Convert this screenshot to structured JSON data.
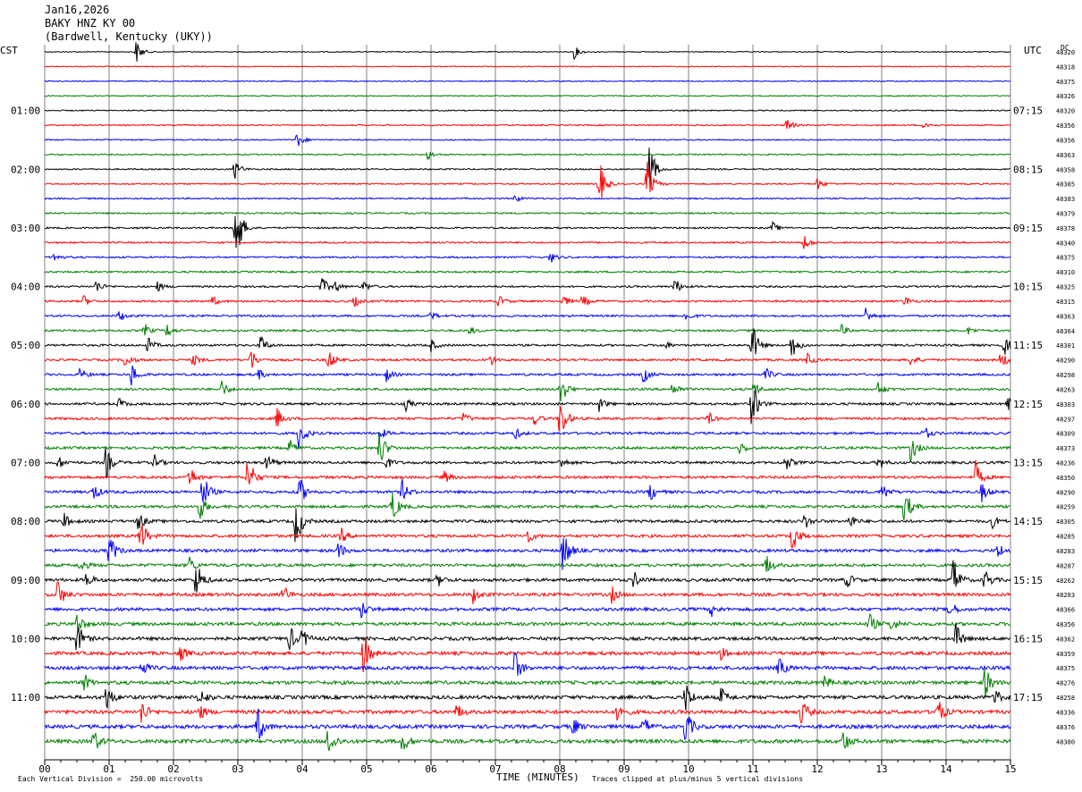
{
  "header": {
    "date": "Jan16,2026",
    "station": "BAKY HNZ KY 00",
    "location": "(Bardwell, Kentucky (UKY))"
  },
  "left_tz": "CST",
  "right_tz": "UTC",
  "dc_label": "DC",
  "footer": {
    "scale_note": "Each Vertical Division =  250.00 microvolts",
    "xlabel": "TIME (MINUTES)",
    "clip_note": "Traces clipped at plus/minus 5 vertical divisions"
  },
  "colors": {
    "cycle": [
      "#000000",
      "#ff0000",
      "#0000ff",
      "#007f00"
    ],
    "grid": "#808080"
  },
  "chart_data": {
    "type": "line",
    "title": "",
    "xlabel": "TIME (MINUTES)",
    "xlim": [
      0,
      15
    ],
    "x_ticks": [
      "00",
      "01",
      "02",
      "03",
      "04",
      "05",
      "06",
      "07",
      "08",
      "09",
      "10",
      "11",
      "12",
      "13",
      "14",
      "15"
    ],
    "rows": 48,
    "row_minutes": 15,
    "left_hour_labels": [
      "01:00",
      "02:00",
      "03:00",
      "04:00",
      "05:00",
      "06:00",
      "07:00",
      "08:00",
      "09:00",
      "10:00",
      "11:00"
    ],
    "right_hour_labels": [
      "07:15",
      "08:15",
      "09:15",
      "10:15",
      "11:15",
      "12:15",
      "13:15",
      "14:15",
      "15:15",
      "16:15",
      "17:15"
    ],
    "dc_offsets": [
      "48320",
      "48318",
      "48375",
      "48326",
      "48320",
      "48356",
      "48356",
      "48363",
      "48358",
      "48385",
      "48383",
      "48379",
      "48378",
      "48340",
      "48375",
      "48310",
      "48325",
      "48315",
      "48363",
      "48364",
      "48301",
      "48290",
      "48298",
      "48263",
      "48303",
      "48297",
      "48309",
      "48373",
      "48236",
      "48350",
      "48290",
      "48259",
      "48305",
      "48285",
      "48283",
      "48287",
      "48262",
      "48283",
      "48366",
      "48356",
      "48362",
      "48359",
      "48375",
      "48276",
      "48258",
      "48336",
      "48376",
      "48380"
    ],
    "events": [
      {
        "row": 0,
        "minute": 1.42,
        "amp": 14
      },
      {
        "row": 0,
        "minute": 8.22,
        "amp": 8
      },
      {
        "row": 5,
        "minute": 11.52,
        "amp": 10
      },
      {
        "row": 5,
        "minute": 13.65,
        "amp": 7
      },
      {
        "row": 6,
        "minute": 3.92,
        "amp": 10
      },
      {
        "row": 7,
        "minute": 5.95,
        "amp": 6
      },
      {
        "row": 8,
        "minute": 2.95,
        "amp": 12
      },
      {
        "row": 8,
        "minute": 9.38,
        "amp": 38
      },
      {
        "row": 9,
        "minute": 8.6,
        "amp": 34
      },
      {
        "row": 9,
        "minute": 9.35,
        "amp": 28
      },
      {
        "row": 9,
        "minute": 12.0,
        "amp": 7
      },
      {
        "row": 10,
        "minute": 7.3,
        "amp": 5
      },
      {
        "row": 12,
        "minute": 2.95,
        "amp": 65
      },
      {
        "row": 12,
        "minute": 11.3,
        "amp": 7
      },
      {
        "row": 13,
        "minute": 11.8,
        "amp": 10
      },
      {
        "row": 14,
        "minute": 0.15,
        "amp": 6
      },
      {
        "row": 14,
        "minute": 7.85,
        "amp": 7
      },
      {
        "row": 16,
        "minute": 0.8,
        "amp": 8
      },
      {
        "row": 16,
        "minute": 1.75,
        "amp": 6
      },
      {
        "row": 16,
        "minute": 4.3,
        "amp": 12
      },
      {
        "row": 16,
        "minute": 4.5,
        "amp": 8
      },
      {
        "row": 16,
        "minute": 4.95,
        "amp": 7
      },
      {
        "row": 16,
        "minute": 9.78,
        "amp": 11
      },
      {
        "row": 17,
        "minute": 0.6,
        "amp": 7
      },
      {
        "row": 17,
        "minute": 2.6,
        "amp": 6
      },
      {
        "row": 17,
        "minute": 4.8,
        "amp": 7
      },
      {
        "row": 17,
        "minute": 7.05,
        "amp": 7
      },
      {
        "row": 17,
        "minute": 8.05,
        "amp": 7
      },
      {
        "row": 17,
        "minute": 8.35,
        "amp": 8
      },
      {
        "row": 17,
        "minute": 13.35,
        "amp": 7
      },
      {
        "row": 18,
        "minute": 1.15,
        "amp": 7
      },
      {
        "row": 18,
        "minute": 6.0,
        "amp": 5
      },
      {
        "row": 18,
        "minute": 9.95,
        "amp": 7
      },
      {
        "row": 18,
        "minute": 12.75,
        "amp": 10
      },
      {
        "row": 19,
        "minute": 1.55,
        "amp": 8
      },
      {
        "row": 19,
        "minute": 1.9,
        "amp": 8
      },
      {
        "row": 19,
        "minute": 6.6,
        "amp": 5
      },
      {
        "row": 19,
        "minute": 12.35,
        "amp": 9
      },
      {
        "row": 19,
        "minute": 14.35,
        "amp": 5
      },
      {
        "row": 20,
        "minute": 1.6,
        "amp": 10
      },
      {
        "row": 20,
        "minute": 3.35,
        "amp": 12
      },
      {
        "row": 20,
        "minute": 6.0,
        "amp": 7
      },
      {
        "row": 20,
        "minute": 9.6,
        "amp": 7
      },
      {
        "row": 20,
        "minute": 10.98,
        "amp": 30
      },
      {
        "row": 20,
        "minute": 11.6,
        "amp": 18
      },
      {
        "row": 20,
        "minute": 14.9,
        "amp": 12
      },
      {
        "row": 21,
        "minute": 1.25,
        "amp": 10
      },
      {
        "row": 21,
        "minute": 2.3,
        "amp": 8
      },
      {
        "row": 21,
        "minute": 3.2,
        "amp": 14
      },
      {
        "row": 21,
        "minute": 4.4,
        "amp": 14
      },
      {
        "row": 21,
        "minute": 6.9,
        "amp": 8
      },
      {
        "row": 21,
        "minute": 11.85,
        "amp": 8
      },
      {
        "row": 21,
        "minute": 13.45,
        "amp": 7
      },
      {
        "row": 21,
        "minute": 14.85,
        "amp": 12
      },
      {
        "row": 22,
        "minute": 0.55,
        "amp": 8
      },
      {
        "row": 22,
        "minute": 1.35,
        "amp": 14
      },
      {
        "row": 22,
        "minute": 3.3,
        "amp": 8
      },
      {
        "row": 22,
        "minute": 5.3,
        "amp": 8
      },
      {
        "row": 22,
        "minute": 9.3,
        "amp": 10
      },
      {
        "row": 22,
        "minute": 11.2,
        "amp": 8
      },
      {
        "row": 23,
        "minute": 2.75,
        "amp": 10
      },
      {
        "row": 23,
        "minute": 8.0,
        "amp": 24
      },
      {
        "row": 23,
        "minute": 9.75,
        "amp": 10
      },
      {
        "row": 23,
        "minute": 11.0,
        "amp": 10
      },
      {
        "row": 23,
        "minute": 12.95,
        "amp": 9
      },
      {
        "row": 24,
        "minute": 1.15,
        "amp": 7
      },
      {
        "row": 24,
        "minute": 5.6,
        "amp": 8
      },
      {
        "row": 24,
        "minute": 8.6,
        "amp": 10
      },
      {
        "row": 24,
        "minute": 10.98,
        "amp": 30
      },
      {
        "row": 24,
        "minute": 14.95,
        "amp": 9
      },
      {
        "row": 25,
        "minute": 3.6,
        "amp": 14
      },
      {
        "row": 25,
        "minute": 6.5,
        "amp": 7
      },
      {
        "row": 25,
        "minute": 7.6,
        "amp": 8
      },
      {
        "row": 25,
        "minute": 8.0,
        "amp": 30
      },
      {
        "row": 25,
        "minute": 10.3,
        "amp": 8
      },
      {
        "row": 26,
        "minute": 3.95,
        "amp": 22
      },
      {
        "row": 26,
        "minute": 5.2,
        "amp": 8
      },
      {
        "row": 26,
        "minute": 7.3,
        "amp": 7
      },
      {
        "row": 26,
        "minute": 13.65,
        "amp": 10
      },
      {
        "row": 27,
        "minute": 3.8,
        "amp": 10
      },
      {
        "row": 27,
        "minute": 5.2,
        "amp": 25
      },
      {
        "row": 27,
        "minute": 10.8,
        "amp": 8
      },
      {
        "row": 27,
        "minute": 13.45,
        "amp": 18
      },
      {
        "row": 28,
        "minute": 0.2,
        "amp": 9
      },
      {
        "row": 28,
        "minute": 0.95,
        "amp": 20
      },
      {
        "row": 28,
        "minute": 1.7,
        "amp": 9
      },
      {
        "row": 28,
        "minute": 3.45,
        "amp": 12
      },
      {
        "row": 28,
        "minute": 5.3,
        "amp": 8
      },
      {
        "row": 28,
        "minute": 8.0,
        "amp": 8
      },
      {
        "row": 28,
        "minute": 11.5,
        "amp": 10
      },
      {
        "row": 28,
        "minute": 12.95,
        "amp": 9
      },
      {
        "row": 29,
        "minute": 2.25,
        "amp": 14
      },
      {
        "row": 29,
        "minute": 3.15,
        "amp": 32
      },
      {
        "row": 29,
        "minute": 6.2,
        "amp": 8
      },
      {
        "row": 29,
        "minute": 14.45,
        "amp": 20
      },
      {
        "row": 30,
        "minute": 0.75,
        "amp": 12
      },
      {
        "row": 30,
        "minute": 2.45,
        "amp": 26
      },
      {
        "row": 30,
        "minute": 3.95,
        "amp": 20
      },
      {
        "row": 30,
        "minute": 5.55,
        "amp": 14
      },
      {
        "row": 30,
        "minute": 9.4,
        "amp": 12
      },
      {
        "row": 30,
        "minute": 13.0,
        "amp": 12
      },
      {
        "row": 30,
        "minute": 14.55,
        "amp": 12
      },
      {
        "row": 31,
        "minute": 2.4,
        "amp": 18
      },
      {
        "row": 31,
        "minute": 5.4,
        "amp": 20
      },
      {
        "row": 31,
        "minute": 13.35,
        "amp": 25
      },
      {
        "row": 32,
        "minute": 0.3,
        "amp": 9
      },
      {
        "row": 32,
        "minute": 1.45,
        "amp": 12
      },
      {
        "row": 32,
        "minute": 3.9,
        "amp": 35
      },
      {
        "row": 32,
        "minute": 11.8,
        "amp": 9
      },
      {
        "row": 32,
        "minute": 12.5,
        "amp": 9
      },
      {
        "row": 32,
        "minute": 14.7,
        "amp": 9
      },
      {
        "row": 33,
        "minute": 1.48,
        "amp": 24
      },
      {
        "row": 33,
        "minute": 4.6,
        "amp": 10
      },
      {
        "row": 33,
        "minute": 7.5,
        "amp": 9
      },
      {
        "row": 33,
        "minute": 11.6,
        "amp": 22
      },
      {
        "row": 34,
        "minute": 1.0,
        "amp": 22
      },
      {
        "row": 34,
        "minute": 4.55,
        "amp": 12
      },
      {
        "row": 34,
        "minute": 8.05,
        "amp": 32
      },
      {
        "row": 34,
        "minute": 14.8,
        "amp": 10
      },
      {
        "row": 35,
        "minute": 0.55,
        "amp": 9
      },
      {
        "row": 35,
        "minute": 2.25,
        "amp": 10
      },
      {
        "row": 35,
        "minute": 11.2,
        "amp": 14
      },
      {
        "row": 36,
        "minute": 0.65,
        "amp": 10
      },
      {
        "row": 36,
        "minute": 2.35,
        "amp": 26
      },
      {
        "row": 36,
        "minute": 6.1,
        "amp": 8
      },
      {
        "row": 36,
        "minute": 9.15,
        "amp": 10
      },
      {
        "row": 36,
        "minute": 12.45,
        "amp": 10
      },
      {
        "row": 36,
        "minute": 14.1,
        "amp": 32
      },
      {
        "row": 36,
        "minute": 14.6,
        "amp": 14
      },
      {
        "row": 37,
        "minute": 0.2,
        "amp": 20
      },
      {
        "row": 37,
        "minute": 3.7,
        "amp": 12
      },
      {
        "row": 37,
        "minute": 6.65,
        "amp": 10
      },
      {
        "row": 37,
        "minute": 8.8,
        "amp": 10
      },
      {
        "row": 38,
        "minute": 4.9,
        "amp": 14
      },
      {
        "row": 38,
        "minute": 10.35,
        "amp": 8
      },
      {
        "row": 38,
        "minute": 14.05,
        "amp": 12
      },
      {
        "row": 39,
        "minute": 0.5,
        "amp": 14
      },
      {
        "row": 39,
        "minute": 12.8,
        "amp": 14
      },
      {
        "row": 39,
        "minute": 13.15,
        "amp": 9
      },
      {
        "row": 40,
        "minute": 0.5,
        "amp": 22
      },
      {
        "row": 40,
        "minute": 3.8,
        "amp": 16
      },
      {
        "row": 40,
        "minute": 4.0,
        "amp": 12
      },
      {
        "row": 40,
        "minute": 14.15,
        "amp": 18
      },
      {
        "row": 41,
        "minute": 4.95,
        "amp": 28
      },
      {
        "row": 41,
        "minute": 2.1,
        "amp": 10
      },
      {
        "row": 41,
        "minute": 10.5,
        "amp": 8
      },
      {
        "row": 42,
        "minute": 1.5,
        "amp": 10
      },
      {
        "row": 42,
        "minute": 7.3,
        "amp": 22
      },
      {
        "row": 42,
        "minute": 11.4,
        "amp": 14
      },
      {
        "row": 43,
        "minute": 0.6,
        "amp": 12
      },
      {
        "row": 43,
        "minute": 14.6,
        "amp": 20
      },
      {
        "row": 43,
        "minute": 12.1,
        "amp": 9
      },
      {
        "row": 44,
        "minute": 0.95,
        "amp": 18
      },
      {
        "row": 44,
        "minute": 2.4,
        "amp": 14
      },
      {
        "row": 44,
        "minute": 9.95,
        "amp": 20
      },
      {
        "row": 44,
        "minute": 10.5,
        "amp": 12
      },
      {
        "row": 44,
        "minute": 14.75,
        "amp": 12
      },
      {
        "row": 45,
        "minute": 1.5,
        "amp": 16
      },
      {
        "row": 45,
        "minute": 2.4,
        "amp": 10
      },
      {
        "row": 45,
        "minute": 6.4,
        "amp": 10
      },
      {
        "row": 45,
        "minute": 8.9,
        "amp": 14
      },
      {
        "row": 45,
        "minute": 11.75,
        "amp": 18
      },
      {
        "row": 45,
        "minute": 13.85,
        "amp": 22
      },
      {
        "row": 46,
        "minute": 3.3,
        "amp": 24
      },
      {
        "row": 46,
        "minute": 8.2,
        "amp": 12
      },
      {
        "row": 46,
        "minute": 9.3,
        "amp": 12
      },
      {
        "row": 46,
        "minute": 9.95,
        "amp": 24
      },
      {
        "row": 47,
        "minute": 0.75,
        "amp": 16
      },
      {
        "row": 47,
        "minute": 4.4,
        "amp": 22
      },
      {
        "row": 47,
        "minute": 5.55,
        "amp": 14
      },
      {
        "row": 47,
        "minute": 12.4,
        "amp": 14
      }
    ]
  }
}
